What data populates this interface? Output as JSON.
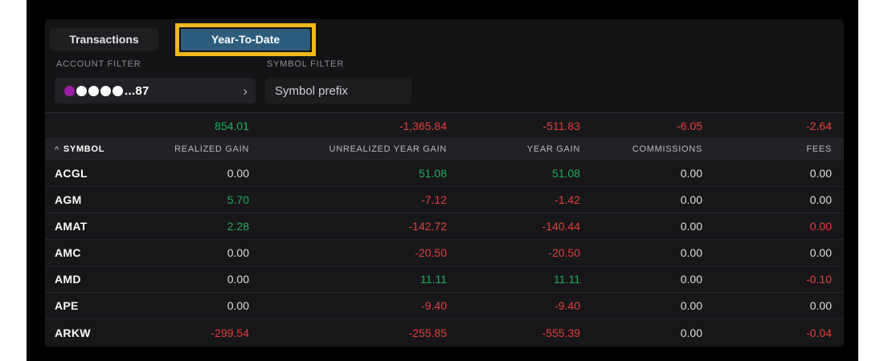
{
  "colors": {
    "positive": "#1fae57",
    "negative": "#e5403a",
    "active_tab": "#2d5d7d",
    "highlight_border": "#f0b81d",
    "account_dot_colors": [
      "#9b1fa8",
      "#ffffff",
      "#ffffff",
      "#ffffff",
      "#ffffff"
    ]
  },
  "tabs": [
    {
      "label": "Transactions",
      "active": false
    },
    {
      "label": "Year-To-Date",
      "active": true
    }
  ],
  "filters": {
    "account": {
      "label": "ACCOUNT FILTER",
      "masked_value": "...87",
      "chevron": "›"
    },
    "symbol": {
      "label": "SYMBOL FILTER",
      "placeholder": "Symbol prefix",
      "value": ""
    }
  },
  "table": {
    "columns": [
      {
        "label": "SYMBOL",
        "sort": "asc"
      },
      {
        "label": "REALIZED GAIN"
      },
      {
        "label": "UNREALIZED YEAR GAIN"
      },
      {
        "label": "YEAR GAIN"
      },
      {
        "label": "COMMISSIONS"
      },
      {
        "label": "FEES"
      }
    ],
    "totals": [
      {
        "value": "854.01",
        "tone": "pos"
      },
      {
        "value": "-1,365.84",
        "tone": "neg"
      },
      {
        "value": "-511.83",
        "tone": "neg"
      },
      {
        "value": "-6.05",
        "tone": "neg"
      },
      {
        "value": "-2.64",
        "tone": "neg"
      }
    ],
    "rows": [
      {
        "symbol": "ACGL",
        "cells": [
          {
            "value": "0.00",
            "tone": "neutral"
          },
          {
            "value": "51.08",
            "tone": "pos"
          },
          {
            "value": "51.08",
            "tone": "pos"
          },
          {
            "value": "0.00",
            "tone": "neutral"
          },
          {
            "value": "0.00",
            "tone": "neutral"
          }
        ]
      },
      {
        "symbol": "AGM",
        "cells": [
          {
            "value": "5.70",
            "tone": "pos"
          },
          {
            "value": "-7.12",
            "tone": "neg"
          },
          {
            "value": "-1.42",
            "tone": "neg"
          },
          {
            "value": "0.00",
            "tone": "neutral"
          },
          {
            "value": "0.00",
            "tone": "neutral"
          }
        ]
      },
      {
        "symbol": "AMAT",
        "cells": [
          {
            "value": "2.28",
            "tone": "pos"
          },
          {
            "value": "-142.72",
            "tone": "neg"
          },
          {
            "value": "-140.44",
            "tone": "neg"
          },
          {
            "value": "0.00",
            "tone": "neutral"
          },
          {
            "value": "0.00",
            "tone": "neg"
          }
        ]
      },
      {
        "symbol": "AMC",
        "cells": [
          {
            "value": "0.00",
            "tone": "neutral"
          },
          {
            "value": "-20.50",
            "tone": "neg"
          },
          {
            "value": "-20.50",
            "tone": "neg"
          },
          {
            "value": "0.00",
            "tone": "neutral"
          },
          {
            "value": "0.00",
            "tone": "neutral"
          }
        ]
      },
      {
        "symbol": "AMD",
        "cells": [
          {
            "value": "0.00",
            "tone": "neutral"
          },
          {
            "value": "11.11",
            "tone": "pos"
          },
          {
            "value": "11.11",
            "tone": "pos"
          },
          {
            "value": "0.00",
            "tone": "neutral"
          },
          {
            "value": "-0.10",
            "tone": "neg"
          }
        ]
      },
      {
        "symbol": "APE",
        "cells": [
          {
            "value": "0.00",
            "tone": "neutral"
          },
          {
            "value": "-9.40",
            "tone": "neg"
          },
          {
            "value": "-9.40",
            "tone": "neg"
          },
          {
            "value": "0.00",
            "tone": "neutral"
          },
          {
            "value": "0.00",
            "tone": "neutral"
          }
        ]
      },
      {
        "symbol": "ARKW",
        "cells": [
          {
            "value": "-299.54",
            "tone": "neg"
          },
          {
            "value": "-255.85",
            "tone": "neg"
          },
          {
            "value": "-555.39",
            "tone": "neg"
          },
          {
            "value": "0.00",
            "tone": "neutral"
          },
          {
            "value": "-0.04",
            "tone": "neg"
          }
        ]
      }
    ]
  },
  "sort_caret_icon": "^"
}
